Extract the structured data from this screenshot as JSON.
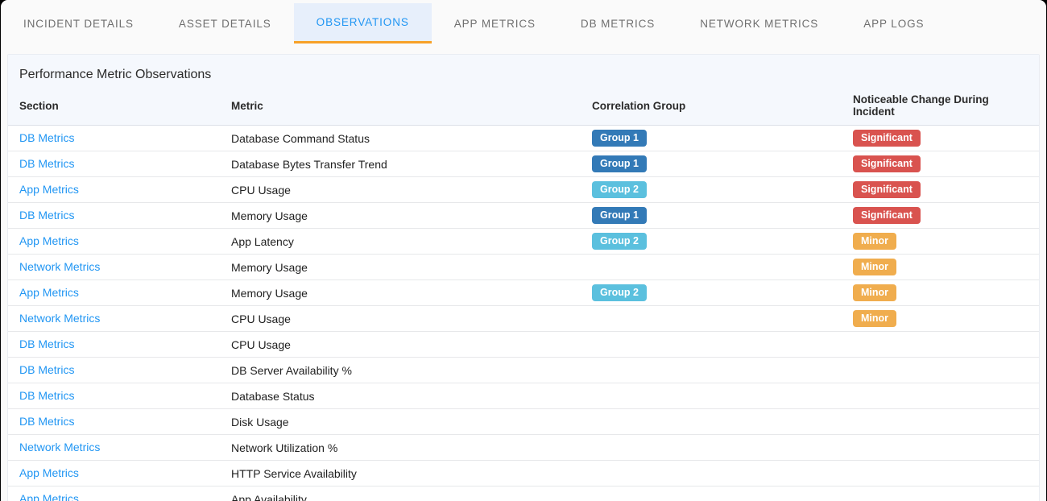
{
  "tabs": [
    {
      "label": "INCIDENT DETAILS",
      "active": false
    },
    {
      "label": "ASSET DETAILS",
      "active": false
    },
    {
      "label": "OBSERVATIONS",
      "active": true
    },
    {
      "label": "APP METRICS",
      "active": false
    },
    {
      "label": "DB METRICS",
      "active": false
    },
    {
      "label": "NETWORK METRICS",
      "active": false
    },
    {
      "label": "APP LOGS",
      "active": false
    }
  ],
  "panel": {
    "title": "Performance Metric Observations",
    "columns": [
      "Section",
      "Metric",
      "Correlation Group",
      "Noticeable Change During Incident"
    ],
    "rows": [
      {
        "section": "DB Metrics",
        "metric": "Database Command Status",
        "group": "Group 1",
        "change": "Significant"
      },
      {
        "section": "DB Metrics",
        "metric": "Database Bytes Transfer Trend",
        "group": "Group 1",
        "change": "Significant"
      },
      {
        "section": "App Metrics",
        "metric": "CPU Usage",
        "group": "Group 2",
        "change": "Significant"
      },
      {
        "section": "DB Metrics",
        "metric": "Memory Usage",
        "group": "Group 1",
        "change": "Significant"
      },
      {
        "section": "App Metrics",
        "metric": "App Latency",
        "group": "Group 2",
        "change": "Minor"
      },
      {
        "section": "Network Metrics",
        "metric": "Memory Usage",
        "group": "",
        "change": "Minor"
      },
      {
        "section": "App Metrics",
        "metric": "Memory Usage",
        "group": "Group 2",
        "change": "Minor"
      },
      {
        "section": "Network Metrics",
        "metric": "CPU Usage",
        "group": "",
        "change": "Minor"
      },
      {
        "section": "DB Metrics",
        "metric": "CPU Usage",
        "group": "",
        "change": ""
      },
      {
        "section": "DB Metrics",
        "metric": "DB Server Availability %",
        "group": "",
        "change": ""
      },
      {
        "section": "DB Metrics",
        "metric": "Database Status",
        "group": "",
        "change": ""
      },
      {
        "section": "DB Metrics",
        "metric": "Disk Usage",
        "group": "",
        "change": ""
      },
      {
        "section": "Network Metrics",
        "metric": "Network Utilization %",
        "group": "",
        "change": ""
      },
      {
        "section": "App Metrics",
        "metric": "HTTP Service Availability",
        "group": "",
        "change": ""
      },
      {
        "section": "App Metrics",
        "metric": "App Availability",
        "group": "",
        "change": ""
      }
    ]
  },
  "colors": {
    "group-1": "#337ab7",
    "group-2": "#5bc0de",
    "significant": "#d9534f",
    "minor": "#f0ad4e",
    "link": "#2196f3",
    "tab-active": "#2196f3",
    "tab-underline": "#f7a128",
    "tab-highlight": "#e7effb"
  }
}
